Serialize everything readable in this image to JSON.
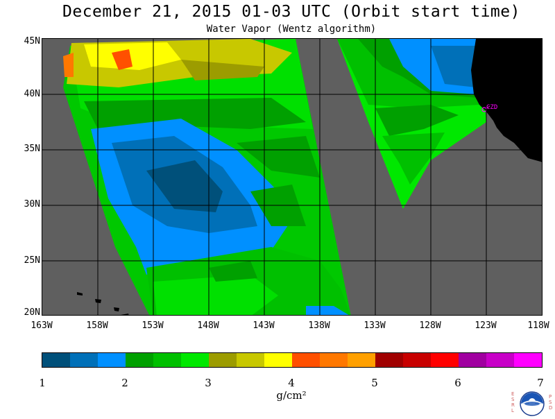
{
  "header": {
    "title": "December 21, 2015  01-03 UTC  (Orbit start time)",
    "subtitle": "Water Vapor (Wentz algorithm)"
  },
  "map": {
    "lat_labels": [
      "45N",
      "40N",
      "35N",
      "30N",
      "25N",
      "20N"
    ],
    "lon_labels": [
      "163W",
      "158W",
      "153W",
      "148W",
      "143W",
      "138W",
      "133W",
      "128W",
      "123W",
      "118W"
    ],
    "station_label": "CZD",
    "colors": {
      "no_data": "#5f5f5f",
      "land": "#000000",
      "gridlines": "#000000",
      "station": "#ff00ff"
    }
  },
  "colorbar": {
    "tick_labels": [
      "1",
      "2",
      "3",
      "4",
      "5",
      "6",
      "7"
    ],
    "units": "g/cm²",
    "colors": [
      "#00507a",
      "#0070b8",
      "#0090ff",
      "#00a000",
      "#00c000",
      "#00e800",
      "#9c9c00",
      "#c8c800",
      "#ffff00",
      "#ff5000",
      "#ff7800",
      "#ffa000",
      "#a00000",
      "#c80000",
      "#ff0000",
      "#a000a0",
      "#c800c8",
      "#ff00ff"
    ]
  },
  "logo": {
    "left_text": "ESRL",
    "right_text": "PSD",
    "name": "noaa-logo"
  }
}
